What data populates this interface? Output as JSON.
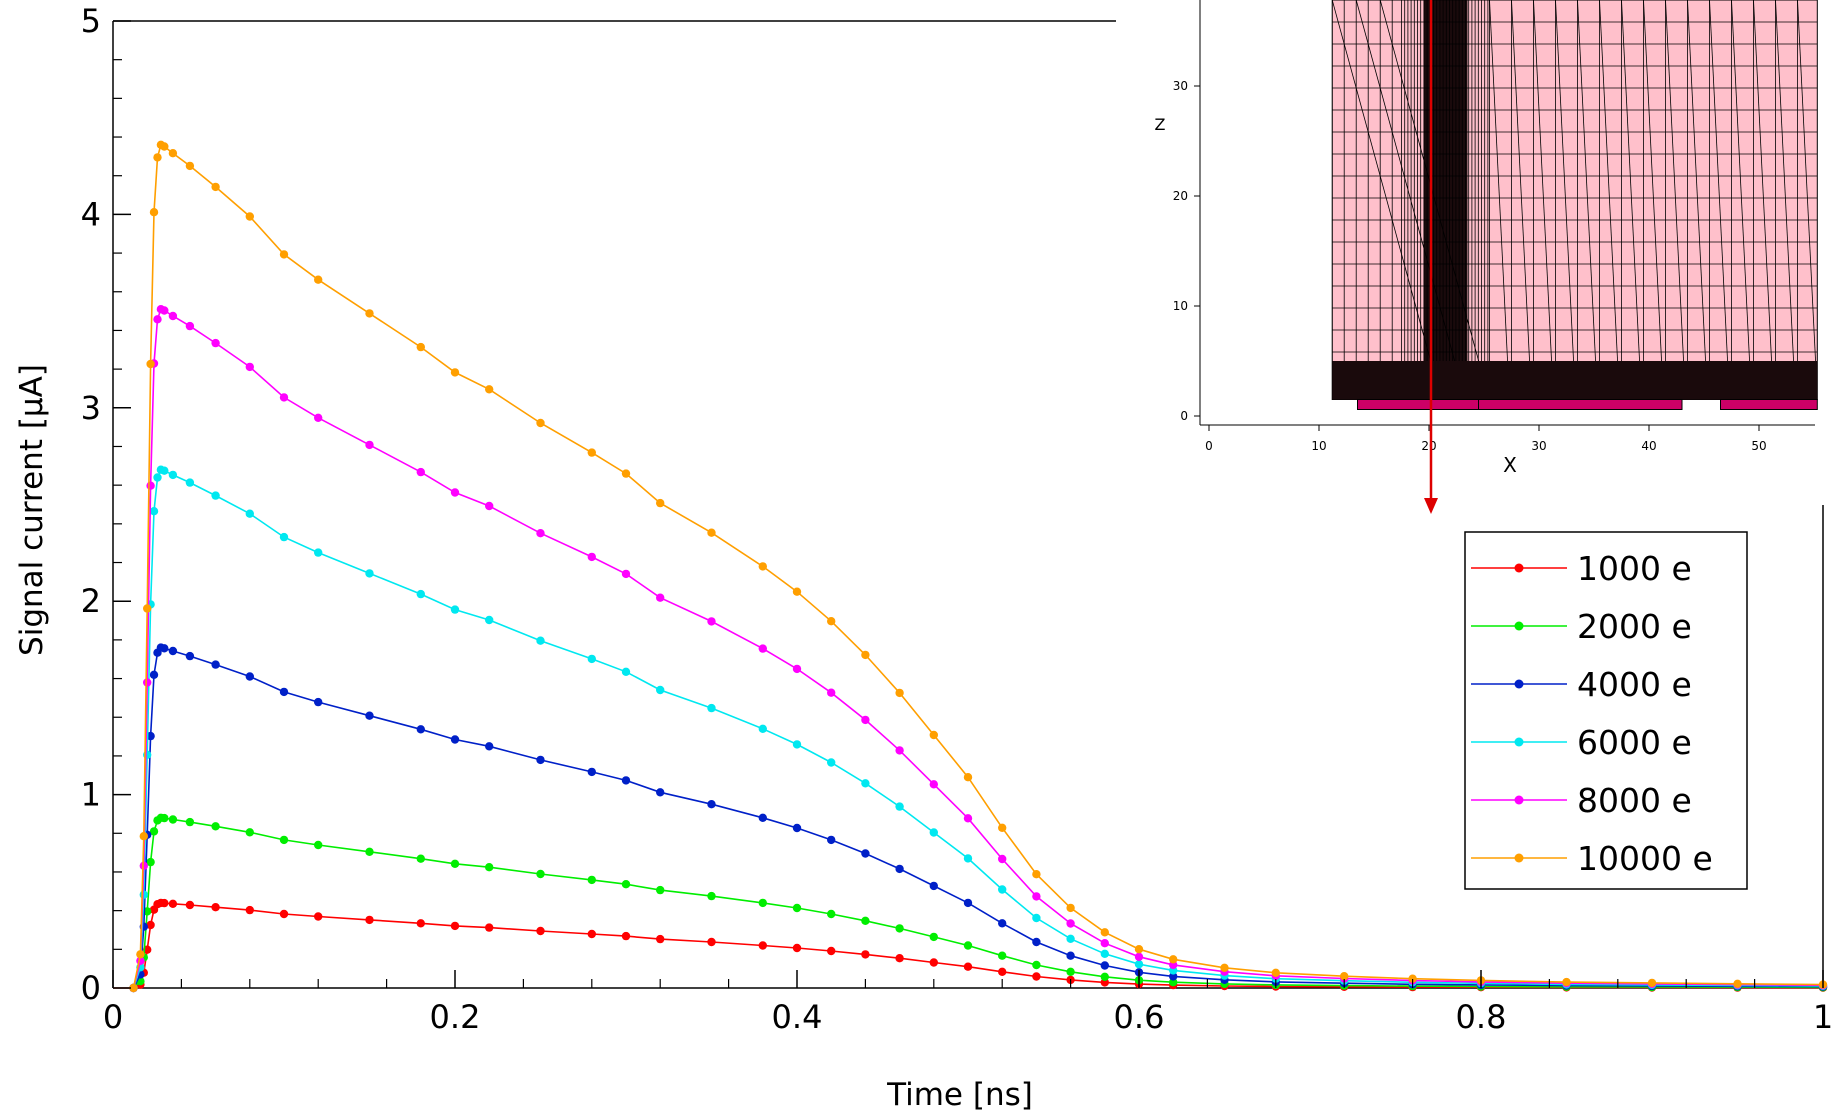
{
  "chart_data": [
    {
      "type": "line",
      "xlabel": "Time [ns]",
      "ylabel": "Signal current [µA]",
      "xlim": [
        0,
        1
      ],
      "ylim": [
        0,
        5
      ],
      "x_ticks": [
        "0",
        "0.2",
        "0.4",
        "0.6",
        "0.8",
        "1"
      ],
      "y_ticks": [
        "0",
        "1",
        "2",
        "3",
        "4",
        "5"
      ],
      "grid": false,
      "legend_position": "right",
      "series": [
        {
          "name": "1000 e",
          "color": "#ff0000",
          "peak": 0.44
        },
        {
          "name": "2000 e",
          "color": "#00ee00",
          "peak": 0.88
        },
        {
          "name": "4000 e",
          "color": "#0020c8",
          "peak": 1.76
        },
        {
          "name": "6000 e",
          "color": "#00e8f0",
          "peak": 2.68
        },
        {
          "name": "8000 e",
          "color": "#ff00ff",
          "peak": 3.51
        },
        {
          "name": "10000 e",
          "color": "#ff9f00",
          "peak": 4.36
        }
      ],
      "shape": {
        "x": [
          0,
          0.012,
          0.016,
          0.018,
          0.02,
          0.022,
          0.024,
          0.026,
          0.028,
          0.03,
          0.035,
          0.045,
          0.06,
          0.08,
          0.1,
          0.12,
          0.15,
          0.18,
          0.2,
          0.22,
          0.25,
          0.28,
          0.3,
          0.32,
          0.35,
          0.38,
          0.4,
          0.42,
          0.44,
          0.46,
          0.48,
          0.5,
          0.52,
          0.54,
          0.56,
          0.58,
          0.6,
          0.62,
          0.65,
          0.68,
          0.72,
          0.76,
          0.8,
          0.85,
          0.9,
          0.95,
          1.0
        ],
        "y": [
          0,
          0,
          0.04,
          0.18,
          0.45,
          0.74,
          0.92,
          0.985,
          1.0,
          0.998,
          0.99,
          0.975,
          0.95,
          0.915,
          0.87,
          0.84,
          0.8,
          0.76,
          0.73,
          0.71,
          0.67,
          0.635,
          0.61,
          0.575,
          0.54,
          0.5,
          0.47,
          0.435,
          0.395,
          0.35,
          0.3,
          0.25,
          0.19,
          0.135,
          0.095,
          0.066,
          0.046,
          0.034,
          0.024,
          0.018,
          0.014,
          0.011,
          0.009,
          0.007,
          0.006,
          0.005,
          0.004
        ]
      }
    },
    {
      "type": "diagram",
      "xlabel": "X",
      "ylabel": "Z",
      "x_ticks": [
        "0",
        "10",
        "20",
        "30",
        "40",
        "50"
      ],
      "y_ticks": [
        "0",
        "10",
        "20",
        "30"
      ],
      "fill_color": "#ffc0cb",
      "electrode_color": "#cc0066"
    }
  ]
}
